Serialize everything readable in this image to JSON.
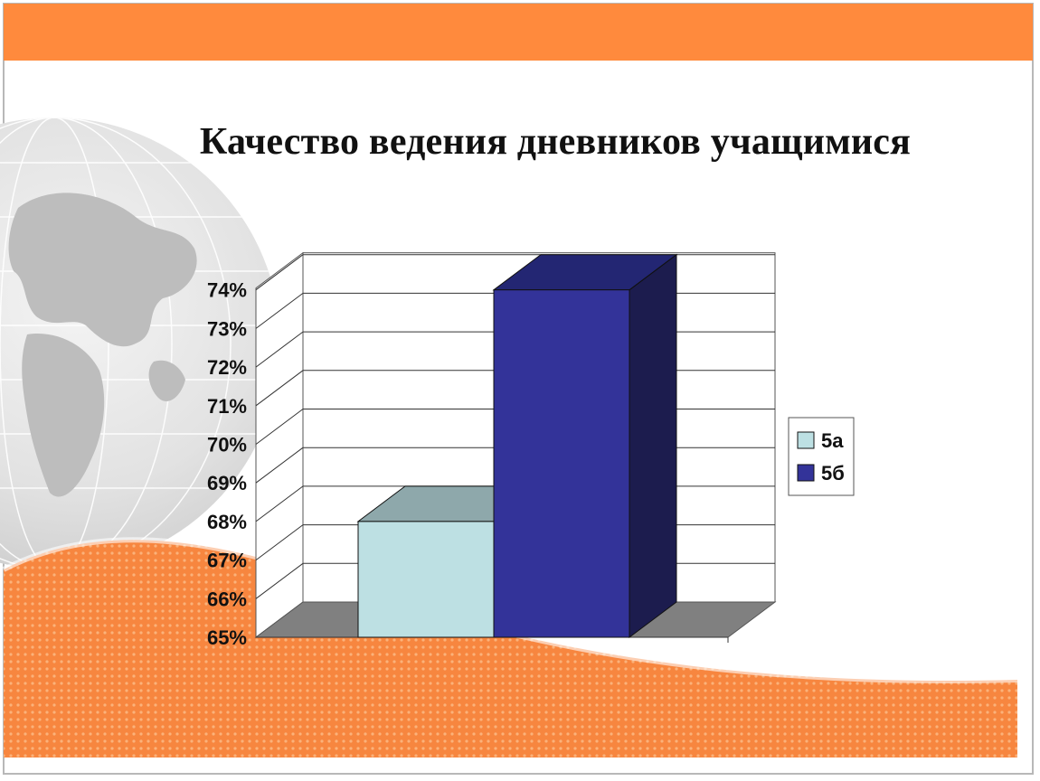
{
  "slide": {
    "title": "Качество ведения дневников учащимися",
    "colors": {
      "banner": "#ff8a3d",
      "background": "#ffffff",
      "orange_wave": "#f7863f"
    }
  },
  "chart_data": {
    "type": "bar",
    "style": "3d-column",
    "title": "Качество ведения дневников учащимися",
    "xlabel": "",
    "ylabel": "",
    "ylim": [
      65,
      74
    ],
    "yticks": [
      "65%",
      "66%",
      "67%",
      "68%",
      "69%",
      "70%",
      "71%",
      "72%",
      "73%",
      "74%"
    ],
    "grid": true,
    "legend_position": "right",
    "series": [
      {
        "name": "5а",
        "value": 68,
        "color": "#bde0e3",
        "top_color": "#8ea8ab"
      },
      {
        "name": "5б",
        "value": 74,
        "color": "#333399",
        "top_color": "#232673",
        "side_color": "#1c1c4e"
      }
    ]
  }
}
